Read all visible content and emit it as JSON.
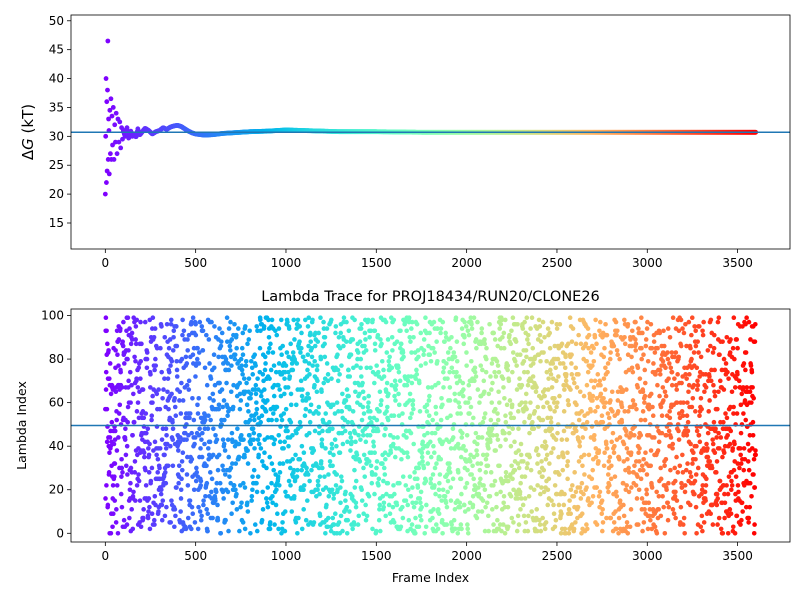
{
  "chart_data": [
    {
      "type": "scatter",
      "title": "",
      "xlabel": "",
      "ylabel_prefix": "Δ",
      "ylabel_var": "G",
      "ylabel_suffix": " (kT)",
      "xlim": [
        -190,
        3790
      ],
      "ylim": [
        10.5,
        51
      ],
      "xticks": [
        0,
        500,
        1000,
        1500,
        2000,
        2500,
        3000,
        3500
      ],
      "yticks": [
        15,
        20,
        25,
        30,
        35,
        40,
        45,
        50
      ],
      "hline": 30.7,
      "grid": false,
      "colormap": "rainbow (red at frame 0 → violet at last frame)",
      "series": [
        {
          "x": [
            0,
            2,
            4,
            6,
            8,
            10,
            12,
            14,
            16,
            18,
            20,
            22,
            25,
            28,
            31,
            34,
            37,
            40,
            44,
            48,
            52,
            56,
            60,
            65,
            70,
            75,
            80,
            85,
            90,
            95,
            100,
            110,
            120,
            130,
            140,
            150,
            160,
            170,
            180,
            190,
            200,
            220,
            240,
            260,
            280,
            300,
            320,
            340,
            360,
            380,
            400,
            420,
            440,
            460,
            480,
            500,
            550,
            600,
            650,
            700,
            750,
            800,
            900,
            1000,
            1100,
            1200,
            1300,
            1400,
            1500,
            1750,
            2000,
            2250,
            2500,
            2750,
            3000,
            3250,
            3500,
            3600
          ],
          "values": [
            20.0,
            30.0,
            40.0,
            22.0,
            36.0,
            24.0,
            38.0,
            46.5,
            26.0,
            33.0,
            31.0,
            23.5,
            34.5,
            27.0,
            36.5,
            26.0,
            33.5,
            28.5,
            35.0,
            26.0,
            32.0,
            29.0,
            34.0,
            27.0,
            33.0,
            29.0,
            32.5,
            28.0,
            31.5,
            29.5,
            31.0,
            30.0,
            31.5,
            29.5,
            31.0,
            30.0,
            30.5,
            29.8,
            31.3,
            30.2,
            30.6,
            31.4,
            31.0,
            30.4,
            30.8,
            31.0,
            31.5,
            31.2,
            31.6,
            31.8,
            31.9,
            31.7,
            31.3,
            30.9,
            30.6,
            30.4,
            30.2,
            30.3,
            30.5,
            30.6,
            30.7,
            30.8,
            30.9,
            31.1,
            31.0,
            30.9,
            30.8,
            30.8,
            30.8,
            30.7,
            30.7,
            30.7,
            30.7,
            30.7,
            30.7,
            30.7,
            30.7,
            30.7
          ]
        }
      ]
    },
    {
      "type": "scatter",
      "title": "Lambda Trace for PROJ18434/RUN20/CLONE26",
      "xlabel": "Frame Index",
      "ylabel": "Lambda Index",
      "xlim": [
        -190,
        3790
      ],
      "ylim": [
        -4,
        103
      ],
      "xticks": [
        0,
        500,
        1000,
        1500,
        2000,
        2500,
        3000,
        3500
      ],
      "yticks": [
        0,
        20,
        40,
        60,
        80,
        100
      ],
      "hline": 49.5,
      "grid": false,
      "colormap": "rainbow (red at frame 0 → violet at last frame)",
      "series": [
        {
          "note_points": "about 3600 frames, one point each; lambda index is spread roughly uniformly over 0–99 across all frames",
          "frame_start": 0,
          "frame_end": 3600,
          "lambda_min": 0,
          "lambda_max": 99
        }
      ]
    }
  ]
}
